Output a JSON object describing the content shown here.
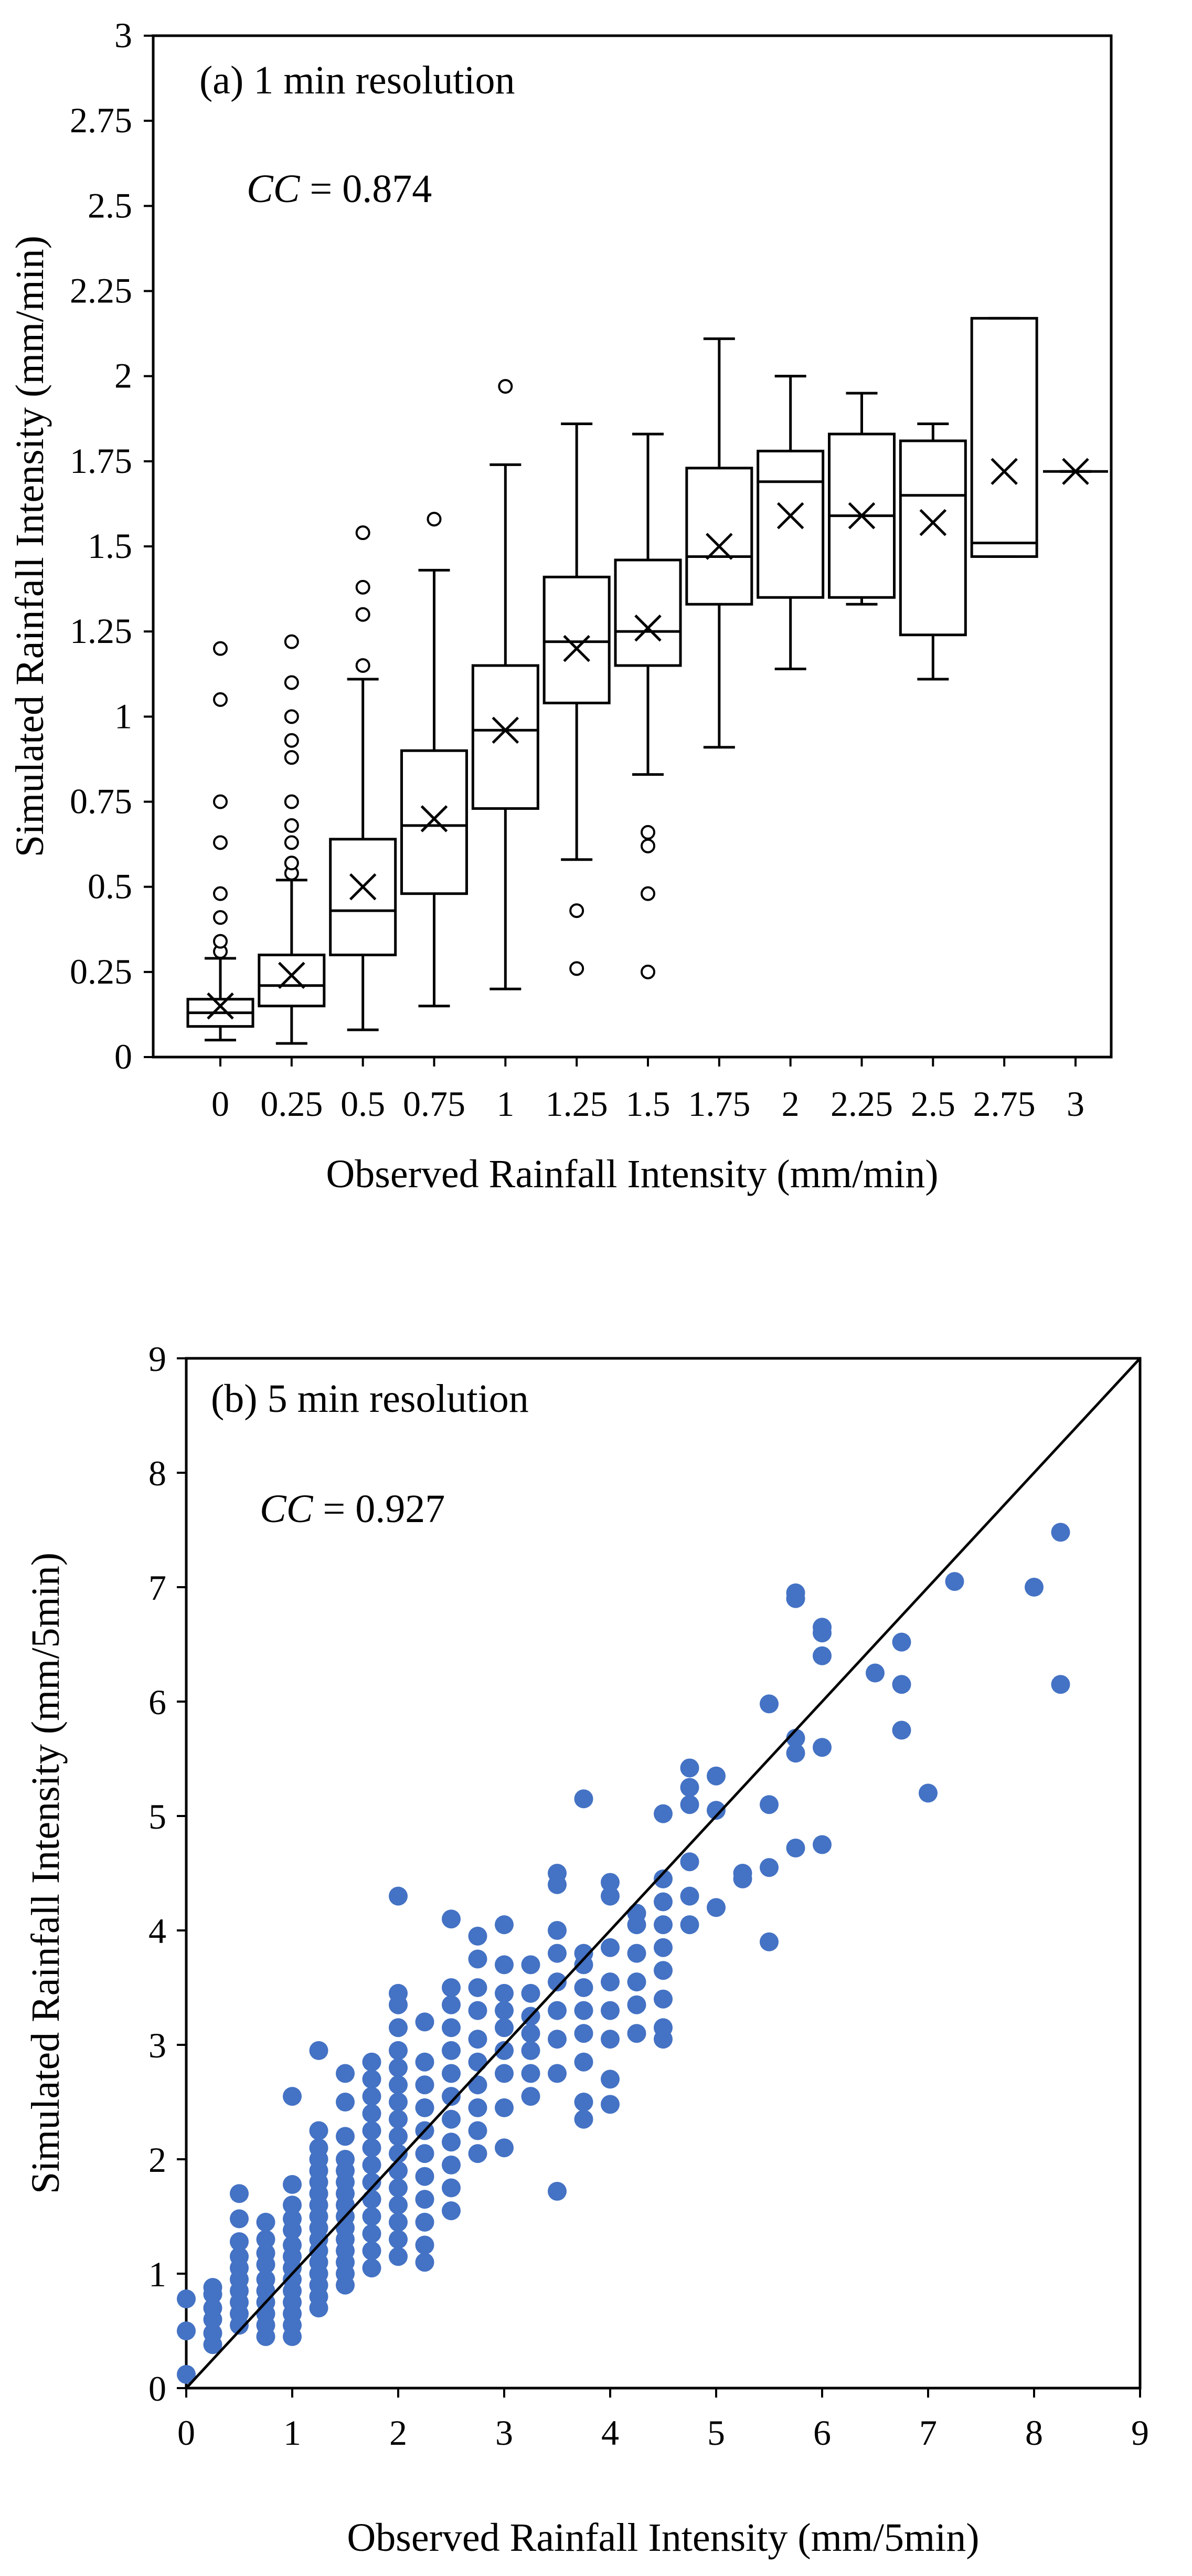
{
  "chart_data": [
    {
      "type": "box",
      "panel_label": "(a) 1 min resolution",
      "annotation": {
        "prefix": "CC",
        "suffix": " = 0.874"
      },
      "xlabel": "Observed Rainfall Intensity (mm/min)",
      "ylabel": "Simulated Rainfall Intensity (mm/min)",
      "categories": [
        "0",
        "0.25",
        "0.5",
        "0.75",
        "1",
        "1.25",
        "1.5",
        "1.75",
        "2",
        "2.25",
        "2.5",
        "2.75",
        "3"
      ],
      "xlim": [
        0,
        3
      ],
      "ylim": [
        0,
        3
      ],
      "yticks": [
        "0",
        "0.25",
        "0.5",
        "0.75",
        "1",
        "1.25",
        "1.5",
        "1.75",
        "2",
        "2.25",
        "2.5",
        "2.75",
        "3"
      ],
      "boxes": [
        {
          "x": 0,
          "q1": 0.09,
          "median": 0.13,
          "q3": 0.17,
          "mean": 0.15,
          "whisker_low": 0.05,
          "whisker_high": 0.29,
          "outliers": [
            0.31,
            0.34,
            0.41,
            0.48,
            0.63,
            0.75,
            1.05,
            1.2
          ]
        },
        {
          "x": 0.25,
          "q1": 0.15,
          "median": 0.21,
          "q3": 0.3,
          "mean": 0.24,
          "whisker_low": 0.04,
          "whisker_high": 0.52,
          "outliers": [
            0.54,
            0.57,
            0.63,
            0.68,
            0.75,
            0.88,
            0.93,
            1.0,
            1.1,
            1.22
          ]
        },
        {
          "x": 0.5,
          "q1": 0.3,
          "median": 0.43,
          "q3": 0.64,
          "mean": 0.5,
          "whisker_low": 0.08,
          "whisker_high": 1.11,
          "outliers": [
            1.15,
            1.3,
            1.38,
            1.54
          ]
        },
        {
          "x": 0.75,
          "q1": 0.48,
          "median": 0.68,
          "q3": 0.9,
          "mean": 0.7,
          "whisker_low": 0.15,
          "whisker_high": 1.43,
          "outliers": [
            1.58
          ]
        },
        {
          "x": 1,
          "q1": 0.73,
          "median": 0.96,
          "q3": 1.15,
          "mean": 0.96,
          "whisker_low": 0.2,
          "whisker_high": 1.74,
          "outliers": [
            1.97
          ]
        },
        {
          "x": 1.25,
          "q1": 1.04,
          "median": 1.22,
          "q3": 1.41,
          "mean": 1.2,
          "whisker_low": 0.58,
          "whisker_high": 1.86,
          "outliers": [
            0.26,
            0.43
          ]
        },
        {
          "x": 1.5,
          "q1": 1.15,
          "median": 1.25,
          "q3": 1.46,
          "mean": 1.26,
          "whisker_low": 0.83,
          "whisker_high": 1.83,
          "outliers": [
            0.25,
            0.48,
            0.62,
            0.66
          ]
        },
        {
          "x": 1.75,
          "q1": 1.33,
          "median": 1.47,
          "q3": 1.73,
          "mean": 1.5,
          "whisker_low": 0.91,
          "whisker_high": 2.11,
          "outliers": []
        },
        {
          "x": 2,
          "q1": 1.35,
          "median": 1.69,
          "q3": 1.78,
          "mean": 1.59,
          "whisker_low": 1.14,
          "whisker_high": 2.0,
          "outliers": []
        },
        {
          "x": 2.25,
          "q1": 1.35,
          "median": 1.59,
          "q3": 1.83,
          "mean": 1.59,
          "whisker_low": 1.33,
          "whisker_high": 1.95,
          "outliers": []
        },
        {
          "x": 2.5,
          "q1": 1.24,
          "median": 1.65,
          "q3": 1.81,
          "mean": 1.57,
          "whisker_low": 1.11,
          "whisker_high": 1.86,
          "outliers": []
        },
        {
          "x": 2.75,
          "q1": 1.47,
          "median": 1.51,
          "q3": 2.17,
          "mean": 1.72,
          "whisker_low": 1.47,
          "whisker_high": 2.17,
          "outliers": []
        },
        {
          "x": 3,
          "q1": 1.72,
          "median": 1.72,
          "q3": 1.72,
          "mean": 1.72,
          "whisker_low": 1.72,
          "whisker_high": 1.72,
          "outliers": []
        }
      ]
    },
    {
      "type": "scatter",
      "panel_label": "(b) 5 min resolution",
      "annotation": {
        "prefix": "CC",
        "suffix": " = 0.927"
      },
      "xlabel": "Observed Rainfall Intensity (mm/5min)",
      "ylabel": "Simulated Rainfall Intensity (mm/5min)",
      "xlim": [
        0,
        9
      ],
      "ylim": [
        0,
        9
      ],
      "xticks": [
        "0",
        "1",
        "2",
        "3",
        "4",
        "5",
        "6",
        "7",
        "8",
        "9"
      ],
      "yticks": [
        "0",
        "1",
        "2",
        "3",
        "4",
        "5",
        "6",
        "7",
        "8",
        "9"
      ],
      "reference_line": [
        [
          0,
          0
        ],
        [
          9,
          9
        ]
      ],
      "point_color": "#4472C4",
      "points": [
        [
          0,
          0.12
        ],
        [
          0,
          0.5
        ],
        [
          0,
          0.78
        ],
        [
          0.25,
          0.38
        ],
        [
          0.25,
          0.48
        ],
        [
          0.25,
          0.6
        ],
        [
          0.25,
          0.7
        ],
        [
          0.25,
          0.82
        ],
        [
          0.25,
          0.88
        ],
        [
          0.5,
          0.55
        ],
        [
          0.5,
          0.65
        ],
        [
          0.5,
          0.75
        ],
        [
          0.5,
          0.85
        ],
        [
          0.5,
          0.95
        ],
        [
          0.5,
          1.05
        ],
        [
          0.5,
          1.15
        ],
        [
          0.5,
          1.28
        ],
        [
          0.5,
          1.48
        ],
        [
          0.5,
          1.7
        ],
        [
          0.75,
          0.45
        ],
        [
          0.75,
          0.55
        ],
        [
          0.75,
          0.65
        ],
        [
          0.75,
          0.75
        ],
        [
          0.75,
          0.85
        ],
        [
          0.75,
          0.95
        ],
        [
          0.75,
          1.08
        ],
        [
          0.75,
          1.18
        ],
        [
          0.75,
          1.3
        ],
        [
          0.75,
          1.45
        ],
        [
          1,
          0.45
        ],
        [
          1,
          0.55
        ],
        [
          1,
          0.65
        ],
        [
          1,
          0.75
        ],
        [
          1,
          0.85
        ],
        [
          1,
          0.95
        ],
        [
          1,
          1.05
        ],
        [
          1,
          1.15
        ],
        [
          1,
          1.25
        ],
        [
          1,
          1.38
        ],
        [
          1,
          1.48
        ],
        [
          1,
          1.6
        ],
        [
          1,
          1.78
        ],
        [
          1,
          2.55
        ],
        [
          1.25,
          0.7
        ],
        [
          1.25,
          0.8
        ],
        [
          1.25,
          0.9
        ],
        [
          1.25,
          1.0
        ],
        [
          1.25,
          1.1
        ],
        [
          1.25,
          1.2
        ],
        [
          1.25,
          1.3
        ],
        [
          1.25,
          1.4
        ],
        [
          1.25,
          1.5
        ],
        [
          1.25,
          1.6
        ],
        [
          1.25,
          1.7
        ],
        [
          1.25,
          1.8
        ],
        [
          1.25,
          1.9
        ],
        [
          1.25,
          2.0
        ],
        [
          1.25,
          2.1
        ],
        [
          1.25,
          2.25
        ],
        [
          1.25,
          2.95
        ],
        [
          1.5,
          0.9
        ],
        [
          1.5,
          1.0
        ],
        [
          1.5,
          1.1
        ],
        [
          1.5,
          1.2
        ],
        [
          1.5,
          1.3
        ],
        [
          1.5,
          1.4
        ],
        [
          1.5,
          1.5
        ],
        [
          1.5,
          1.6
        ],
        [
          1.5,
          1.7
        ],
        [
          1.5,
          1.8
        ],
        [
          1.5,
          1.9
        ],
        [
          1.5,
          2.0
        ],
        [
          1.5,
          2.2
        ],
        [
          1.5,
          2.5
        ],
        [
          1.5,
          2.75
        ],
        [
          1.75,
          1.05
        ],
        [
          1.75,
          1.2
        ],
        [
          1.75,
          1.35
        ],
        [
          1.75,
          1.5
        ],
        [
          1.75,
          1.65
        ],
        [
          1.75,
          1.8
        ],
        [
          1.75,
          1.95
        ],
        [
          1.75,
          2.1
        ],
        [
          1.75,
          2.25
        ],
        [
          1.75,
          2.4
        ],
        [
          1.75,
          2.55
        ],
        [
          1.75,
          2.7
        ],
        [
          1.75,
          2.85
        ],
        [
          2,
          1.15
        ],
        [
          2,
          1.3
        ],
        [
          2,
          1.45
        ],
        [
          2,
          1.6
        ],
        [
          2,
          1.75
        ],
        [
          2,
          1.9
        ],
        [
          2,
          2.05
        ],
        [
          2,
          2.2
        ],
        [
          2,
          2.35
        ],
        [
          2,
          2.5
        ],
        [
          2,
          2.65
        ],
        [
          2,
          2.8
        ],
        [
          2,
          2.95
        ],
        [
          2,
          3.15
        ],
        [
          2,
          3.35
        ],
        [
          2,
          3.45
        ],
        [
          2,
          4.3
        ],
        [
          2.25,
          1.1
        ],
        [
          2.25,
          1.25
        ],
        [
          2.25,
          1.45
        ],
        [
          2.25,
          1.65
        ],
        [
          2.25,
          1.85
        ],
        [
          2.25,
          2.05
        ],
        [
          2.25,
          2.25
        ],
        [
          2.25,
          2.45
        ],
        [
          2.25,
          2.65
        ],
        [
          2.25,
          2.85
        ],
        [
          2.25,
          3.2
        ],
        [
          2.5,
          1.55
        ],
        [
          2.5,
          1.75
        ],
        [
          2.5,
          1.95
        ],
        [
          2.5,
          2.15
        ],
        [
          2.5,
          2.35
        ],
        [
          2.5,
          2.55
        ],
        [
          2.5,
          2.75
        ],
        [
          2.5,
          2.95
        ],
        [
          2.5,
          3.15
        ],
        [
          2.5,
          3.35
        ],
        [
          2.5,
          3.5
        ],
        [
          2.5,
          4.1
        ],
        [
          2.75,
          2.05
        ],
        [
          2.75,
          2.25
        ],
        [
          2.75,
          2.45
        ],
        [
          2.75,
          2.65
        ],
        [
          2.75,
          2.85
        ],
        [
          2.75,
          3.05
        ],
        [
          2.75,
          3.3
        ],
        [
          2.75,
          3.5
        ],
        [
          2.75,
          3.75
        ],
        [
          2.75,
          3.95
        ],
        [
          3,
          2.1
        ],
        [
          3,
          2.45
        ],
        [
          3,
          2.75
        ],
        [
          3,
          2.95
        ],
        [
          3,
          3.15
        ],
        [
          3,
          3.3
        ],
        [
          3,
          3.45
        ],
        [
          3,
          3.7
        ],
        [
          3,
          4.05
        ],
        [
          3.25,
          2.55
        ],
        [
          3.25,
          2.75
        ],
        [
          3.25,
          2.95
        ],
        [
          3.25,
          3.1
        ],
        [
          3.25,
          3.25
        ],
        [
          3.25,
          3.45
        ],
        [
          3.25,
          3.7
        ],
        [
          3.5,
          1.72
        ],
        [
          3.5,
          2.75
        ],
        [
          3.5,
          3.05
        ],
        [
          3.5,
          3.3
        ],
        [
          3.5,
          3.55
        ],
        [
          3.5,
          3.8
        ],
        [
          3.5,
          4.0
        ],
        [
          3.5,
          4.4
        ],
        [
          3.5,
          4.5
        ],
        [
          3.75,
          2.35
        ],
        [
          3.75,
          2.5
        ],
        [
          3.75,
          2.85
        ],
        [
          3.75,
          3.1
        ],
        [
          3.75,
          3.3
        ],
        [
          3.75,
          3.5
        ],
        [
          3.75,
          3.7
        ],
        [
          3.75,
          3.8
        ],
        [
          3.75,
          5.15
        ],
        [
          4,
          2.48
        ],
        [
          4,
          2.7
        ],
        [
          4,
          3.05
        ],
        [
          4,
          3.3
        ],
        [
          4,
          3.55
        ],
        [
          4,
          3.85
        ],
        [
          4,
          4.3
        ],
        [
          4,
          4.42
        ],
        [
          4.25,
          3.1
        ],
        [
          4.25,
          3.35
        ],
        [
          4.25,
          3.55
        ],
        [
          4.25,
          3.8
        ],
        [
          4.25,
          4.05
        ],
        [
          4.25,
          4.15
        ],
        [
          4.5,
          3.05
        ],
        [
          4.5,
          3.15
        ],
        [
          4.5,
          3.4
        ],
        [
          4.5,
          3.65
        ],
        [
          4.5,
          3.85
        ],
        [
          4.5,
          4.05
        ],
        [
          4.5,
          4.25
        ],
        [
          4.5,
          4.45
        ],
        [
          4.5,
          5.02
        ],
        [
          4.75,
          4.05
        ],
        [
          4.75,
          4.3
        ],
        [
          4.75,
          4.6
        ],
        [
          4.75,
          5.1
        ],
        [
          4.75,
          5.25
        ],
        [
          4.75,
          5.42
        ],
        [
          5,
          4.2
        ],
        [
          5,
          5.05
        ],
        [
          5,
          5.35
        ],
        [
          5.25,
          4.45
        ],
        [
          5.25,
          4.5
        ],
        [
          5.5,
          3.9
        ],
        [
          5.5,
          4.55
        ],
        [
          5.5,
          5.1
        ],
        [
          5.5,
          5.98
        ],
        [
          5.75,
          4.72
        ],
        [
          5.75,
          5.55
        ],
        [
          5.75,
          5.68
        ],
        [
          5.75,
          6.9
        ],
        [
          5.75,
          6.95
        ],
        [
          6,
          4.75
        ],
        [
          6,
          5.6
        ],
        [
          6,
          6.4
        ],
        [
          6,
          6.6
        ],
        [
          6,
          6.65
        ],
        [
          6.5,
          6.25
        ],
        [
          6.75,
          5.75
        ],
        [
          6.75,
          6.15
        ],
        [
          6.75,
          6.52
        ],
        [
          7,
          5.2
        ],
        [
          7.25,
          7.05
        ],
        [
          8,
          7.0
        ],
        [
          8.25,
          6.15
        ],
        [
          8.25,
          7.48
        ]
      ]
    }
  ]
}
